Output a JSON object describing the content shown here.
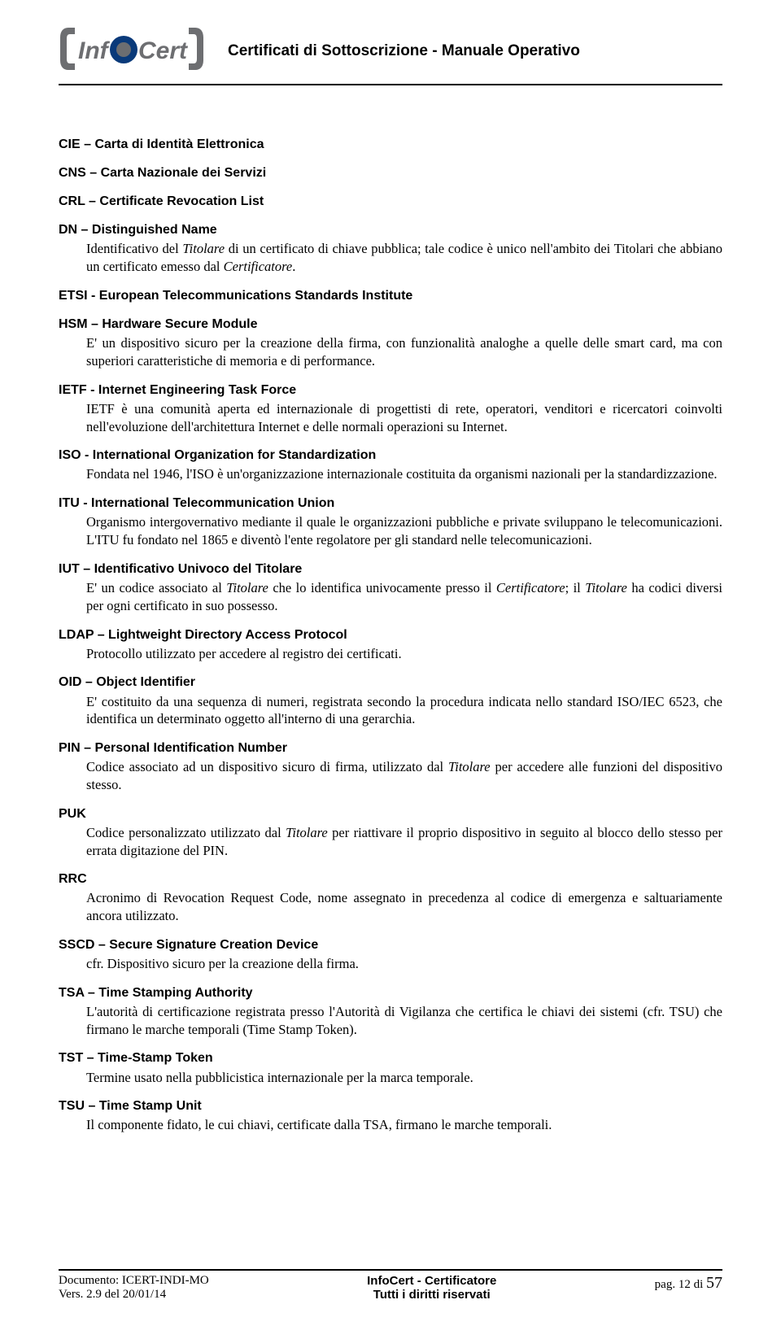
{
  "header": {
    "doc_title": "Certificati di Sottoscrizione - Manuale Operativo",
    "logo_text": "InfoCert",
    "logo_colors": {
      "word": "#6d6e71",
      "o_outer": "#0a3a7a",
      "o_inner": "#6d6e71",
      "bracket": "#6d6e71"
    }
  },
  "terms": [
    {
      "head": "CIE – Carta di Identità Elettronica",
      "body": ""
    },
    {
      "head": "CNS – Carta Nazionale dei Servizi",
      "body": ""
    },
    {
      "head": "CRL – Certificate Revocation List",
      "body": ""
    },
    {
      "head": "DN – Distinguished Name",
      "body": "Identificativo del <i>Titolare</i> di un certificato di chiave pubblica; tale codice è unico nell'ambito dei Titolari che abbiano un certificato emesso dal <i>Certificatore</i>."
    },
    {
      "head": "ETSI - European Telecommunications Standards Institute",
      "body": ""
    },
    {
      "head": "HSM – Hardware Secure Module",
      "body": "E' un dispositivo sicuro per la creazione della firma, con funzionalità analoghe a quelle delle smart card, ma con superiori caratteristiche di memoria e di performance."
    },
    {
      "head": "IETF - Internet Engineering Task Force",
      "body": "IETF è una comunità aperta ed internazionale di progettisti di rete, operatori, venditori e ricercatori coinvolti nell'evoluzione dell'architettura Internet e delle normali operazioni su Internet."
    },
    {
      "head": "ISO - International Organization for Standardization",
      "body": "Fondata nel 1946, l'ISO è un'organizzazione internazionale costituita da organismi nazionali per la standardizzazione."
    },
    {
      "head": "ITU - International Telecommunication Union",
      "body": "Organismo intergovernativo mediante il quale le organizzazioni pubbliche e private sviluppano le telecomunicazioni. L'ITU fu fondato nel 1865 e diventò l'ente regolatore per gli standard nelle telecomunicazioni."
    },
    {
      "head": "IUT – Identificativo Univoco del Titolare",
      "body": "E' un codice associato al <i>Titolare</i> che lo identifica univocamente presso il <i>Certificatore</i>; il <i>Titolare</i> ha codici diversi per ogni certificato in suo possesso."
    },
    {
      "head": "LDAP – Lightweight Directory Access Protocol",
      "body": "Protocollo utilizzato per accedere al registro dei certificati."
    },
    {
      "head": "OID – Object Identifier",
      "body": "E' costituito da una sequenza di numeri, registrata secondo la procedura indicata nello standard ISO/IEC 6523, che identifica un determinato oggetto all'interno di una gerarchia."
    },
    {
      "head": "PIN – Personal Identification Number",
      "body": "Codice associato ad un dispositivo sicuro di firma, utilizzato dal <i>Titolare</i> per accedere alle funzioni del dispositivo stesso."
    },
    {
      "head": "PUK",
      "body": "Codice personalizzato utilizzato dal <i>Titolare</i> per riattivare il proprio dispositivo in seguito al blocco dello stesso per errata digitazione del PIN."
    },
    {
      "head": "RRC",
      "body": "Acronimo di Revocation Request Code, nome assegnato in precedenza al codice di emergenza e saltuariamente ancora utilizzato."
    },
    {
      "head": "SSCD – Secure Signature Creation Device",
      "body": "cfr. Dispositivo sicuro per la creazione della firma."
    },
    {
      "head": "TSA – Time Stamping Authority",
      "body": "L'autorità di certificazione registrata presso l'Autorità di Vigilanza che certifica le chiavi dei sistemi (cfr. TSU) che firmano le marche temporali (Time Stamp Token)."
    },
    {
      "head": "TST – Time-Stamp Token",
      "body": "Termine usato nella pubblicistica internazionale per la marca temporale."
    },
    {
      "head": "TSU – Time Stamp Unit",
      "body": "Il componente fidato, le cui chiavi, certificate dalla TSA, firmano le marche temporali."
    }
  ],
  "footer": {
    "doc_id": "Documento: ICERT-INDI-MO",
    "version": "Vers. 2.9 del 20/01/14",
    "center1": "InfoCert - Certificatore",
    "center2": "Tutti i diritti riservati",
    "page_prefix": "pag. ",
    "page_cur": "12",
    "page_sep": " di ",
    "page_tot": "57"
  }
}
